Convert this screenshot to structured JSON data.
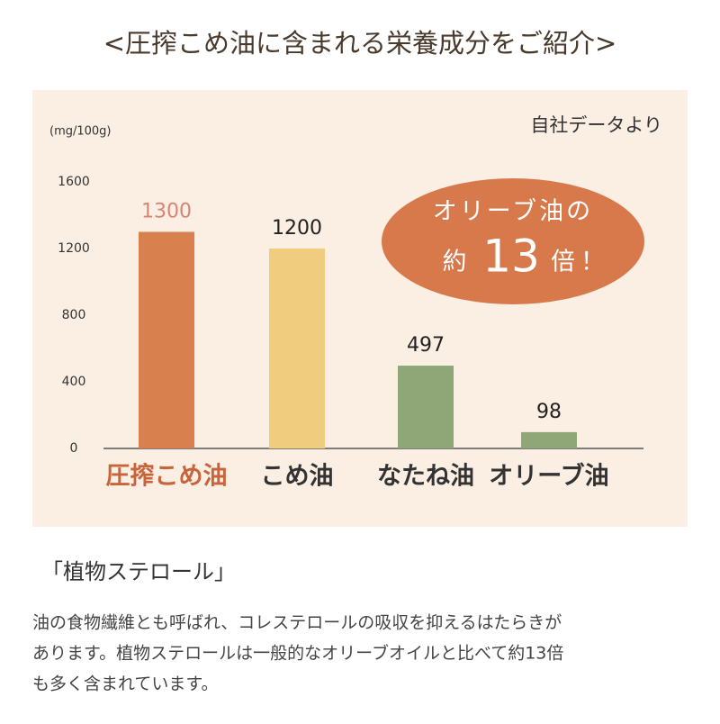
{
  "heading": "<圧搾こめ油に含まれる栄養成分をご紹介>",
  "chart_data": {
    "type": "bar",
    "unit_label": "(mg/100g)",
    "source_note": "自社データより",
    "categories": [
      "圧搾こめ油",
      "こめ油",
      "なたね油",
      "オリーブ油"
    ],
    "values": [
      1300,
      1200,
      497,
      98
    ],
    "colors": [
      "#d9804f",
      "#f0cd7e",
      "#8fa676",
      "#8fa676"
    ],
    "value_label_colors": [
      "#d98376",
      "#222222",
      "#222222",
      "#222222"
    ],
    "category_label_colors": [
      "#c8643c",
      "#333333",
      "#333333",
      "#333333"
    ],
    "ylim": [
      0,
      1600
    ],
    "yticks": [
      0,
      400,
      800,
      1200,
      1600
    ],
    "grid": false,
    "callout": {
      "line1": "オリーブ油の",
      "prefix": "約",
      "number": "13",
      "suffix": "倍！",
      "color": "#d7794b"
    }
  },
  "section_title": "「植物ステロール」",
  "body_lines": [
    "油の食物繊維とも呼ばれ、コレステロールの吸収を抑えるはたらきが",
    "あります。植物ステロールは一般的なオリーブオイルと比べて約13倍",
    "も多く含まれています。"
  ]
}
